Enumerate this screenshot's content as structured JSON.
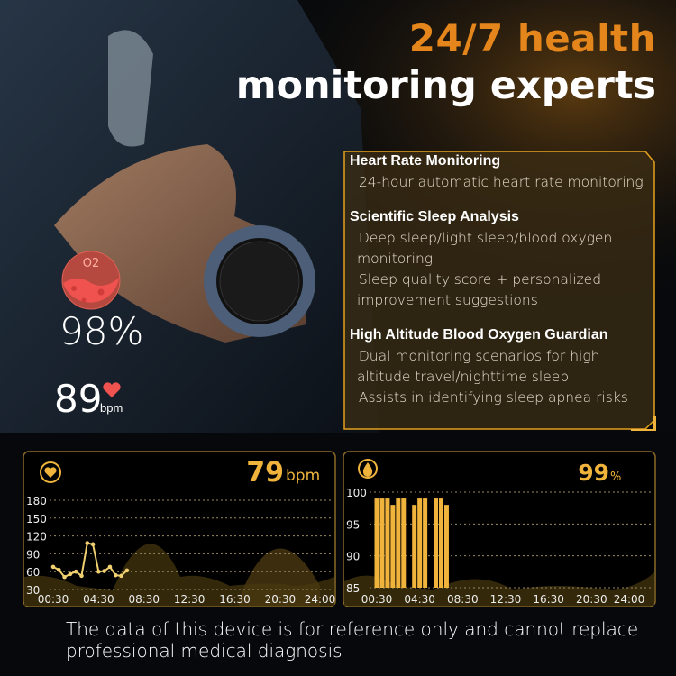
{
  "headline": {
    "line1": "24/7 health",
    "line2": "monitoring experts"
  },
  "colors": {
    "accent": "#e4861c",
    "chart_gold": "#f0b43c",
    "badge_red": "#f0524f"
  },
  "features": [
    {
      "title": "Heart Rate Monitoring",
      "bullets": [
        "· 24-hour automatic heart rate monitoring"
      ]
    },
    {
      "title": "Scientific Sleep Analysis",
      "bullets": [
        "· Deep sleep/light sleep/blood oxygen monitoring",
        "· Sleep quality score + personalized improvement suggestions"
      ]
    },
    {
      "title": "High Altitude Blood Oxygen Guardian",
      "bullets": [
        "· Dual monitoring scenarios for high altitude travel/nighttime sleep",
        "· Assists in identifying sleep apnea risks"
      ]
    }
  ],
  "badges": {
    "o2_label": "O2",
    "o2_value": "98%",
    "hr_value": "89",
    "hr_unit": "bpm",
    "o2_icon": "blood-oxygen-icon",
    "hr_icon": "heart-icon"
  },
  "chart_data": [
    {
      "type": "line",
      "icon": "heart-icon",
      "current_value": "79",
      "current_unit": "bpm",
      "yticks": [
        180,
        150,
        120,
        90,
        60,
        30
      ],
      "ylim": [
        30,
        180
      ],
      "xticks": [
        "00:30",
        "04:30",
        "08:30",
        "12:30",
        "16:30",
        "20:30",
        "24:00"
      ],
      "grid": true,
      "x": [
        "00:30",
        "01:00",
        "01:30",
        "02:00",
        "02:30",
        "03:00",
        "03:30",
        "04:00",
        "04:30",
        "05:00",
        "05:30",
        "06:00",
        "06:30",
        "07:00"
      ],
      "values": [
        68,
        63,
        51,
        56,
        60,
        53,
        108,
        106,
        60,
        61,
        68,
        54,
        53,
        62
      ]
    },
    {
      "type": "bar",
      "icon": "blood-oxygen-icon",
      "current_value": "99",
      "current_unit": "%",
      "yticks": [
        100,
        95,
        90,
        85
      ],
      "ylim": [
        85,
        100
      ],
      "xticks": [
        "00:30",
        "04:30",
        "08:30",
        "12:30",
        "16:30",
        "20:30",
        "24:00"
      ],
      "grid": true,
      "x": [
        "00:30",
        "01:00",
        "01:30",
        "02:00",
        "02:30",
        "03:00",
        "04:00",
        "04:30",
        "05:00",
        "06:00",
        "06:30",
        "07:00"
      ],
      "values": [
        99,
        99,
        99,
        98,
        99,
        99,
        98,
        99,
        99,
        99,
        99,
        98
      ]
    }
  ],
  "disclaimer": {
    "line1": "The data of this device is for reference only and cannot replace",
    "line2": "professional medical diagnosis"
  }
}
